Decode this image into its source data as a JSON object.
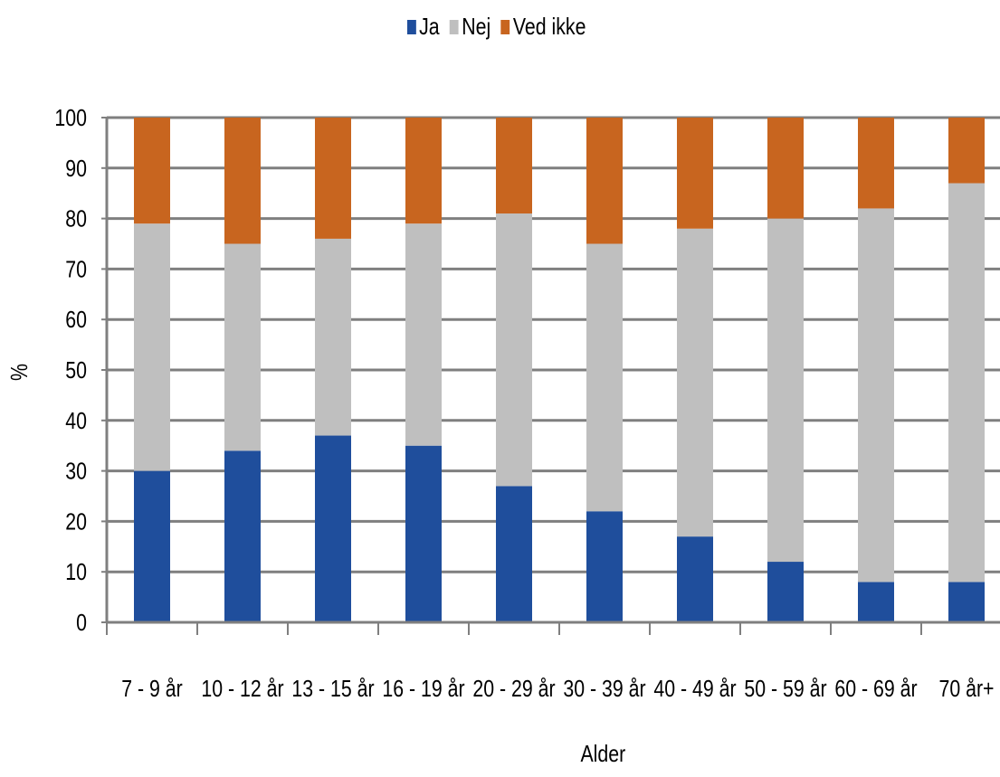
{
  "chart_data": {
    "type": "bar",
    "stacked": true,
    "categories": [
      "7 - 9 år",
      "10 - 12 år",
      "13 - 15 år",
      "16 - 19 år",
      "20 - 29 år",
      "30 - 39 år",
      "40 - 49 år",
      "50 - 59 år",
      "60 - 69 år",
      "70 år+"
    ],
    "series": [
      {
        "name": "Ja",
        "color": "#1f4e9c",
        "values": [
          30,
          34,
          37,
          35,
          27,
          22,
          17,
          12,
          8,
          8
        ]
      },
      {
        "name": "Nej",
        "color": "#bfbfbf",
        "values": [
          49,
          41,
          39,
          44,
          54,
          53,
          61,
          68,
          74,
          79
        ]
      },
      {
        "name": "Ved ikke",
        "color": "#c8651f",
        "values": [
          21,
          25,
          24,
          21,
          19,
          25,
          22,
          20,
          18,
          13
        ]
      }
    ],
    "xlabel": "Alder",
    "ylabel": "%",
    "ylim": [
      0,
      100
    ],
    "yticks": [
      0,
      10,
      20,
      30,
      40,
      50,
      60,
      70,
      80,
      90,
      100
    ],
    "grid": true,
    "legend_position": "top"
  }
}
